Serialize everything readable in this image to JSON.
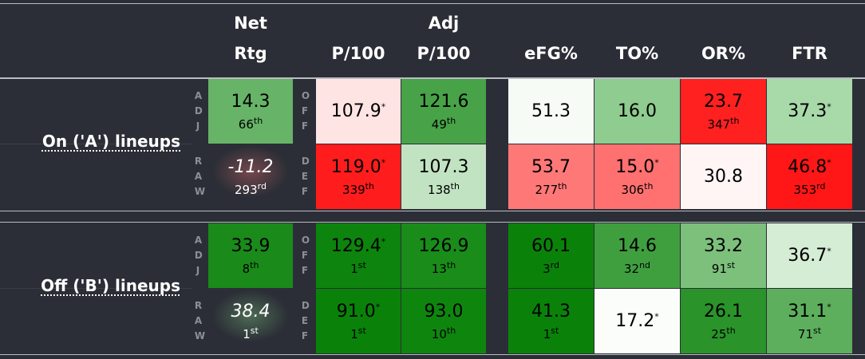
{
  "headers": [
    [
      "Net",
      "Rtg"
    ],
    [
      "P/100"
    ],
    [
      "Adj",
      "P/100"
    ],
    [
      "eFG%"
    ],
    [
      "TO%"
    ],
    [
      "OR%"
    ],
    [
      "FTR"
    ]
  ],
  "sections": [
    {
      "label": "On ('A') lineups",
      "rows": [
        {
          "side": "ADJ",
          "stat_side": "OFF",
          "cells": [
            {
              "value": "14.3",
              "rank": "66",
              "suffix": "th",
              "bg": "#67b367"
            },
            {
              "value": "107.9",
              "star": "*",
              "bg": "#ffe4e4"
            },
            {
              "value": "121.6",
              "rank": "49",
              "suffix": "th",
              "bg": "#48a248"
            },
            {
              "value": "51.3",
              "bg": "#f6fbf6"
            },
            {
              "value": "16.0",
              "bg": "#8fcc8f"
            },
            {
              "value": "23.7",
              "rank": "347",
              "suffix": "th",
              "bg": "#ff2020"
            },
            {
              "value": "37.3",
              "star": "*",
              "bg": "#a8d9a8"
            }
          ]
        },
        {
          "side": "RAW",
          "stat_side": "DEF",
          "cells": [
            {
              "value": "-11.2",
              "rank": "293",
              "suffix": "rd",
              "bg": "#2b2e36",
              "glow": "rgba(255,120,120,0.35)"
            },
            {
              "value": "119.0",
              "star": "*",
              "rank": "339",
              "suffix": "th",
              "bg": "#ff1c1c"
            },
            {
              "value": "107.3",
              "rank": "138",
              "suffix": "th",
              "bg": "#c2e3c2"
            },
            {
              "value": "53.7",
              "rank": "277",
              "suffix": "th",
              "bg": "#ff7878"
            },
            {
              "value": "15.0",
              "star": "*",
              "rank": "306",
              "suffix": "th",
              "bg": "#ff7070"
            },
            {
              "value": "30.8",
              "bg": "#fff5f5"
            },
            {
              "value": "46.8",
              "star": "*",
              "rank": "353",
              "suffix": "rd",
              "bg": "#ff1616"
            }
          ]
        }
      ]
    },
    {
      "label": "Off ('B') lineups",
      "rows": [
        {
          "side": "ADJ",
          "stat_side": "OFF",
          "cells": [
            {
              "value": "33.9",
              "rank": "8",
              "suffix": "th",
              "bg": "#1a8a1a"
            },
            {
              "value": "129.4",
              "star": "*",
              "rank": "1",
              "suffix": "st",
              "bg": "#0d840d"
            },
            {
              "value": "126.9",
              "rank": "13",
              "suffix": "th",
              "bg": "#198c19"
            },
            {
              "value": "60.1",
              "rank": "3",
              "suffix": "rd",
              "bg": "#0a820a"
            },
            {
              "value": "14.6",
              "rank": "32",
              "suffix": "nd",
              "bg": "#3f9f3f"
            },
            {
              "value": "33.2",
              "rank": "91",
              "suffix": "st",
              "bg": "#7cc07c"
            },
            {
              "value": "36.7",
              "star": "*",
              "bg": "#d5ecd5"
            }
          ]
        },
        {
          "side": "RAW",
          "stat_side": "DEF",
          "cells": [
            {
              "value": "38.4",
              "rank": "1",
              "suffix": "st",
              "bg": "#2b2e36",
              "glow": "rgba(140,220,140,0.35)"
            },
            {
              "value": "91.0",
              "star": "*",
              "rank": "1",
              "suffix": "st",
              "bg": "#0a820a"
            },
            {
              "value": "93.0",
              "rank": "10",
              "suffix": "th",
              "bg": "#0e860e"
            },
            {
              "value": "41.3",
              "rank": "1",
              "suffix": "st",
              "bg": "#0a820a"
            },
            {
              "value": "17.2",
              "star": "*",
              "bg": "#fbfdfb"
            },
            {
              "value": "26.1",
              "rank": "25",
              "suffix": "th",
              "bg": "#2a932a"
            },
            {
              "value": "31.1",
              "star": "*",
              "rank": "71",
              "suffix": "st",
              "bg": "#5daf5d"
            }
          ]
        }
      ]
    }
  ]
}
